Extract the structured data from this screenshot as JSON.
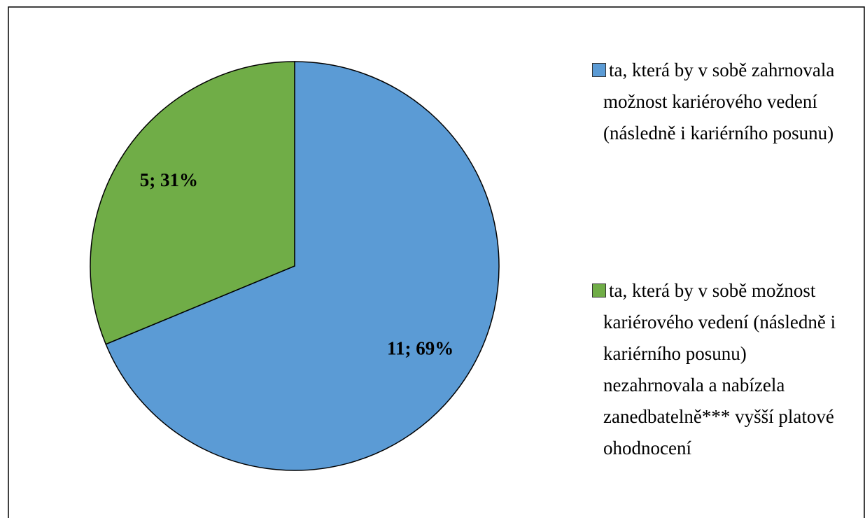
{
  "chart_data": {
    "type": "pie",
    "categories": [
      "ta, která by v sobě zahrnovala možnost kariérového vedení (následně i kariérního posunu)",
      "ta, která by v sobě možnost kariérového vedení (následně i kariérního posunu) nezahrnovala a nabízela zanedbatelně*** vyšší platové ohodnocení"
    ],
    "values": [
      11,
      5
    ],
    "value_labels": [
      "11; 69%",
      "5; 31%"
    ],
    "colors": [
      "#5b9bd5",
      "#70ad47"
    ],
    "legend": "right"
  }
}
